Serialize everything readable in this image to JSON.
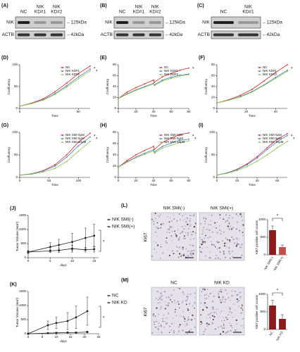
{
  "blots": [
    {
      "label": "(A)",
      "lanes": [
        [
          "NC"
        ],
        [
          "NIK",
          "KD#1"
        ],
        [
          "NIK",
          "KD#2"
        ]
      ],
      "rows": [
        {
          "name": "NIK",
          "size": "←125kDa"
        },
        {
          "name": "ACTB",
          "size": "←42kDa"
        }
      ]
    },
    {
      "label": "(B)",
      "lanes": [
        [
          "NC"
        ],
        [
          "NIK",
          "KD#1"
        ],
        [
          "NIK",
          "KD#2"
        ]
      ],
      "rows": [
        {
          "name": "NIK",
          "size": "←125kDa"
        },
        {
          "name": "ACTB",
          "size": "←42kDa"
        }
      ]
    },
    {
      "label": "(C)",
      "lanes": [
        [
          "NC"
        ],
        [
          "NIK",
          "KD#1"
        ]
      ],
      "rows": [
        {
          "name": "NIK",
          "size": "←125kDa"
        },
        {
          "name": "ACTB",
          "size": "←42kDa"
        }
      ]
    }
  ],
  "images": [
    {
      "label": "(L)",
      "titles": [
        "NIK SMI(-)",
        "NIK SMI(+)"
      ],
      "stain": "Ki67"
    },
    {
      "label": "(M)",
      "titles": [
        "NC",
        "NIK KD"
      ],
      "stain": "Ki67"
    }
  ],
  "chart_data": [
    {
      "type": "line",
      "label": "(D)",
      "xlabel": "Time",
      "ylabel": "Confluency",
      "x": [
        0,
        10,
        20,
        30,
        40,
        50,
        60
      ],
      "xlim": [
        0,
        60
      ],
      "xticks": [
        0,
        50
      ],
      "ylim": [
        0,
        100
      ],
      "yticks": [
        0,
        50,
        100
      ],
      "legend": "upper right",
      "annotations": [
        "*",
        "*"
      ],
      "series": [
        {
          "name": "NC",
          "color": "#d62728",
          "values": [
            5,
            12,
            22,
            38,
            58,
            80,
            97
          ]
        },
        {
          "name": "NIK KD#1",
          "color": "#4a7fc1",
          "values": [
            5,
            11,
            20,
            34,
            52,
            72,
            90
          ]
        },
        {
          "name": "NIK KD#2",
          "color": "#8bc34a",
          "values": [
            5,
            11,
            19,
            32,
            49,
            68,
            86
          ]
        }
      ]
    },
    {
      "type": "line",
      "label": "(E)",
      "xlabel": "Time",
      "ylabel": "Confluency",
      "x": [
        0,
        10,
        20,
        30,
        40,
        41,
        50,
        60,
        70,
        80
      ],
      "xlim": [
        0,
        80
      ],
      "xticks": [
        0,
        20,
        40,
        60,
        80
      ],
      "ylim": [
        0,
        80
      ],
      "yticks": [
        0,
        20,
        40,
        60,
        80
      ],
      "legend": "upper right",
      "annotations": [
        "*"
      ],
      "series": [
        {
          "name": "NC",
          "color": "#d62728",
          "values": [
            18,
            30,
            38,
            45,
            52,
            48,
            58,
            64,
            70,
            74
          ]
        },
        {
          "name": "NIK KD#1",
          "color": "#4a7fc1",
          "values": [
            18,
            27,
            34,
            40,
            46,
            43,
            52,
            57,
            61,
            63
          ]
        },
        {
          "name": "NIK KD#2",
          "color": "#8bc34a",
          "values": [
            18,
            26,
            33,
            39,
            45,
            42,
            50,
            55,
            59,
            62
          ]
        }
      ]
    },
    {
      "type": "line",
      "label": "(F)",
      "xlabel": "Time",
      "ylabel": "Confluency",
      "x": [
        0,
        8,
        16,
        24,
        32,
        40,
        48
      ],
      "xlim": [
        0,
        48
      ],
      "xticks": [
        0,
        20,
        40
      ],
      "ylim": [
        0,
        80
      ],
      "yticks": [
        0,
        20,
        40,
        60,
        80
      ],
      "legend": "upper right",
      "annotations": [
        "*"
      ],
      "series": [
        {
          "name": "NC",
          "color": "#d62728",
          "values": [
            10,
            16,
            24,
            35,
            50,
            66,
            80
          ]
        },
        {
          "name": "NIK KD#1",
          "color": "#4a7fc1",
          "values": [
            10,
            15,
            22,
            31,
            43,
            57,
            70
          ]
        },
        {
          "name": "NIK KD#2",
          "color": "#8bc34a",
          "values": [
            10,
            15,
            21,
            30,
            42,
            55,
            68
          ]
        }
      ]
    },
    {
      "type": "line",
      "label": "(G)",
      "xlabel": "Time",
      "ylabel": "Confluency",
      "x": [
        0,
        20,
        40,
        60,
        80,
        100,
        120
      ],
      "xlim": [
        0,
        120
      ],
      "xticks": [
        0,
        50,
        100
      ],
      "ylim": [
        0,
        100
      ],
      "yticks": [
        0,
        50,
        100
      ],
      "legend": "upper right",
      "annotations": [
        "*",
        "*"
      ],
      "series": [
        {
          "name": "NIK SMI 0μM",
          "color": "#d62728",
          "values": [
            5,
            8,
            15,
            28,
            50,
            78,
            98
          ]
        },
        {
          "name": "NIK SMI 5μM",
          "color": "#4a7fc1",
          "values": [
            5,
            8,
            14,
            25,
            45,
            70,
            90
          ]
        },
        {
          "name": "NIK SMI 10μM",
          "color": "#8bc34a",
          "values": [
            5,
            7,
            12,
            20,
            35,
            58,
            80
          ]
        }
      ]
    },
    {
      "type": "line",
      "label": "(H)",
      "xlabel": "Time",
      "ylabel": "Confluency",
      "x": [
        0,
        10,
        20,
        30,
        40,
        41,
        50,
        60,
        70,
        80
      ],
      "xlim": [
        0,
        80
      ],
      "xticks": [
        0,
        20,
        40,
        60,
        80
      ],
      "ylim": [
        0,
        80
      ],
      "yticks": [
        0,
        20,
        40,
        60,
        80
      ],
      "legend": "upper right",
      "annotations": [
        "*",
        "*"
      ],
      "series": [
        {
          "name": "NIK SMI 0μM",
          "color": "#d62728",
          "values": [
            18,
            30,
            40,
            48,
            55,
            50,
            62,
            70,
            76,
            79
          ]
        },
        {
          "name": "NIK SMI 5μM",
          "color": "#4a7fc1",
          "values": [
            18,
            28,
            36,
            43,
            49,
            45,
            55,
            61,
            66,
            68
          ]
        },
        {
          "name": "NIK SMI 10μM",
          "color": "#8bc34a",
          "values": [
            18,
            27,
            35,
            41,
            47,
            43,
            52,
            57,
            62,
            65
          ]
        }
      ]
    },
    {
      "type": "line",
      "label": "(I)",
      "xlabel": "Time",
      "ylabel": "Confluency",
      "x": [
        0,
        10,
        20,
        30,
        40,
        50,
        60,
        70
      ],
      "xlim": [
        0,
        70
      ],
      "xticks": [
        0,
        20,
        40,
        60
      ],
      "ylim": [
        0,
        100
      ],
      "yticks": [
        0,
        50,
        100
      ],
      "legend": "upper right",
      "annotations": [
        "*",
        "*"
      ],
      "series": [
        {
          "name": "NIK SMI 0μM",
          "color": "#d62728",
          "values": [
            5,
            10,
            18,
            30,
            46,
            66,
            85,
            97
          ]
        },
        {
          "name": "NIK SMI 5μM",
          "color": "#4a7fc1",
          "values": [
            5,
            10,
            17,
            28,
            43,
            62,
            80,
            93
          ]
        },
        {
          "name": "NIK SMI 10μM",
          "color": "#8bc34a",
          "values": [
            5,
            9,
            15,
            24,
            36,
            50,
            66,
            80
          ]
        }
      ]
    },
    {
      "type": "line",
      "label": "(J)",
      "xlabel": "days",
      "ylabel": "Tumor Volume (mm³)",
      "x": [
        0,
        5,
        7,
        10,
        13,
        15
      ],
      "xlim": [
        0,
        16
      ],
      "xticks": [
        0,
        5,
        10,
        15
      ],
      "ylim": [
        0,
        1500
      ],
      "yticks": [
        0,
        500,
        1000,
        1500
      ],
      "legend": "right",
      "annotations": [
        "*"
      ],
      "series": [
        {
          "name": "NIK SMI(-)",
          "color": "#222222",
          "marker": "circle",
          "values": [
            200,
            380,
            450,
            560,
            700,
            780
          ],
          "errors": [
            50,
            150,
            200,
            300,
            350,
            400
          ]
        },
        {
          "name": "NIK SMI(+)",
          "color": "#222222",
          "marker": "square",
          "values": [
            200,
            240,
            260,
            320,
            280,
            300
          ],
          "errors": [
            30,
            60,
            80,
            120,
            80,
            100
          ]
        }
      ]
    },
    {
      "type": "line",
      "label": "(K)",
      "xlabel": "days",
      "ylabel": "Tumor Volume (mm³)",
      "x": [
        0,
        7,
        10,
        14,
        17,
        21
      ],
      "xlim": [
        0,
        25
      ],
      "xticks": [
        0,
        5,
        10,
        15,
        20,
        25
      ],
      "ylim": [
        0,
        1500
      ],
      "yticks": [
        0,
        500,
        1000,
        1500
      ],
      "legend": "right",
      "annotations": [
        "*"
      ],
      "series": [
        {
          "name": "NC",
          "color": "#222222",
          "marker": "circle",
          "values": [
            0,
            300,
            380,
            450,
            580,
            800
          ],
          "errors": [
            0,
            150,
            200,
            300,
            400,
            500
          ]
        },
        {
          "name": "NIK KD",
          "color": "#222222",
          "marker": "square",
          "values": [
            0,
            20,
            30,
            40,
            40,
            60
          ],
          "errors": [
            0,
            10,
            20,
            20,
            20,
            30
          ]
        }
      ]
    },
    {
      "type": "bar",
      "ylabel": "Ki67 positive cell counts",
      "categories": [
        "NIK SMI(-)",
        "NIK SMI(+)"
      ],
      "values": [
        700,
        220
      ],
      "errors": [
        120,
        60
      ],
      "colors": [
        "#8b1a1a",
        "#c0504d"
      ],
      "ylim": [
        0,
        1000
      ],
      "yticks": [
        0,
        500,
        1000
      ],
      "annotations": [
        "*"
      ]
    },
    {
      "type": "bar",
      "ylabel": "Ki67 positive cell counts",
      "categories": [
        "NC",
        "NIK KD"
      ],
      "values": [
        680,
        300
      ],
      "errors": [
        150,
        120
      ],
      "colors": [
        "#8b1a1a",
        "#8b1a1a"
      ],
      "ylim": [
        0,
        1000
      ],
      "yticks": [
        0,
        500,
        1000
      ],
      "annotations": [
        "*"
      ]
    }
  ]
}
